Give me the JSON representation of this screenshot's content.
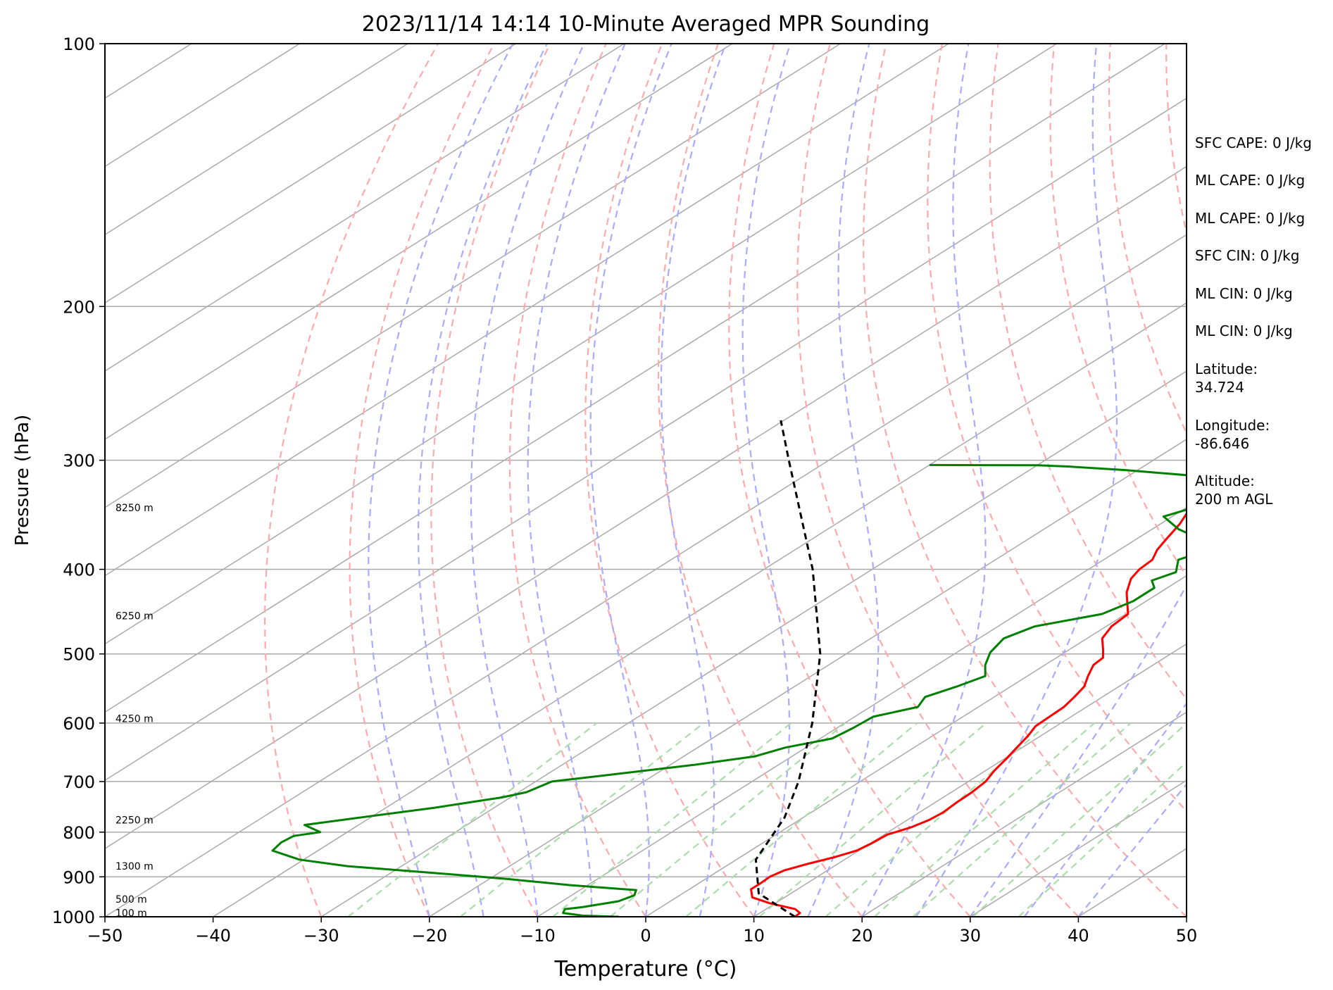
{
  "chart_data": {
    "type": "line",
    "title": "2023/11/14 14:14 10-Minute Averaged MPR Sounding",
    "xlabel": "Temperature (°C)",
    "ylabel": "Pressure (hPa)",
    "xlim": [
      -50,
      50
    ],
    "ylim": [
      1000,
      100
    ],
    "y_scale": "log",
    "grid": true,
    "x_ticks": [
      -50,
      -40,
      -30,
      -20,
      -10,
      0,
      10,
      20,
      30,
      40,
      50
    ],
    "x_tick_labels": [
      "−50",
      "−40",
      "−30",
      "−20",
      "−10",
      "0",
      "10",
      "20",
      "30",
      "40",
      "50"
    ],
    "y_ticks": [
      1000,
      900,
      800,
      700,
      600,
      500,
      400,
      300,
      200,
      100
    ],
    "y_tick_labels": [
      "1000",
      "900",
      "800",
      "700",
      "600",
      "500",
      "400",
      "300",
      "200",
      "100"
    ],
    "skew_factor": 1.28,
    "series": [
      {
        "role": "temperature",
        "color": "#ff0000",
        "points": [
          [
            1000,
            13.8
          ],
          [
            990,
            13.7
          ],
          [
            980,
            12.7
          ],
          [
            965,
            9.5
          ],
          [
            950,
            7.0
          ],
          [
            930,
            5.7
          ],
          [
            915,
            5.7
          ],
          [
            900,
            5.6
          ],
          [
            885,
            6.0
          ],
          [
            870,
            7.2
          ],
          [
            855,
            8.7
          ],
          [
            840,
            9.8
          ],
          [
            825,
            10.1
          ],
          [
            805,
            10.3
          ],
          [
            790,
            11.4
          ],
          [
            775,
            12.0
          ],
          [
            760,
            12.2
          ],
          [
            740,
            12.0
          ],
          [
            720,
            11.9
          ],
          [
            700,
            11.6
          ],
          [
            680,
            10.8
          ],
          [
            660,
            10.2
          ],
          [
            640,
            9.5
          ],
          [
            620,
            8.8
          ],
          [
            605,
            8.1
          ],
          [
            590,
            8.0
          ],
          [
            575,
            7.9
          ],
          [
            560,
            7.4
          ],
          [
            545,
            6.8
          ],
          [
            530,
            5.6
          ],
          [
            515,
            4.5
          ],
          [
            505,
            4.3
          ],
          [
            495,
            3.2
          ],
          [
            480,
            1.4
          ],
          [
            465,
            0.5
          ],
          [
            450,
            0.2
          ],
          [
            440,
            -1.1
          ],
          [
            425,
            -3.1
          ],
          [
            410,
            -4.7
          ],
          [
            400,
            -5.3
          ],
          [
            390,
            -5.5
          ],
          [
            380,
            -6.5
          ],
          [
            370,
            -7.2
          ],
          [
            355,
            -8.2
          ],
          [
            340,
            -9.6
          ],
          [
            325,
            -11.1
          ],
          [
            310,
            -12.3
          ],
          [
            295,
            -13.8
          ],
          [
            280,
            -15.2
          ],
          [
            270,
            -16.1
          ]
        ]
      },
      {
        "role": "dewpoint",
        "color": "#008000",
        "points": [
          [
            1000,
            -2.5
          ],
          [
            997,
            -6.0
          ],
          [
            990,
            -8.2
          ],
          [
            980,
            -8.6
          ],
          [
            975,
            -7.3
          ],
          [
            960,
            -4.8
          ],
          [
            945,
            -4.2
          ],
          [
            932,
            -4.8
          ],
          [
            920,
            -11.6
          ],
          [
            905,
            -18.4
          ],
          [
            890,
            -26.5
          ],
          [
            875,
            -35.0
          ],
          [
            860,
            -40.4
          ],
          [
            840,
            -44.2
          ],
          [
            822,
            -44.6
          ],
          [
            808,
            -44.4
          ],
          [
            800,
            -42.5
          ],
          [
            785,
            -45.0
          ],
          [
            770,
            -41.0
          ],
          [
            750,
            -35.5
          ],
          [
            730,
            -30.8
          ],
          [
            720,
            -29.3
          ],
          [
            700,
            -28.5
          ],
          [
            690,
            -25.0
          ],
          [
            670,
            -17.8
          ],
          [
            655,
            -13.4
          ],
          [
            640,
            -11.9
          ],
          [
            625,
            -8.9
          ],
          [
            608,
            -8.5
          ],
          [
            590,
            -8.3
          ],
          [
            575,
            -5.6
          ],
          [
            560,
            -6.4
          ],
          [
            545,
            -5.0
          ],
          [
            530,
            -3.9
          ],
          [
            515,
            -5.5
          ],
          [
            498,
            -6.9
          ],
          [
            480,
            -7.7
          ],
          [
            465,
            -6.6
          ],
          [
            450,
            -2.2
          ],
          [
            435,
            -1.2
          ],
          [
            420,
            -1.2
          ],
          [
            412,
            -2.5
          ],
          [
            403,
            -1.5
          ],
          [
            390,
            -3.1
          ],
          [
            377,
            -1.3
          ],
          [
            360,
            -7.5
          ],
          [
            348,
            -10.8
          ],
          [
            336,
            -8.6
          ],
          [
            322,
            -11.5
          ],
          [
            315,
            -10.2
          ],
          [
            308,
            -21.0
          ],
          [
            305,
            -27.0
          ],
          [
            304,
            -30.0
          ],
          [
            303.8,
            -40.0
          ]
        ]
      },
      {
        "role": "parcel",
        "color": "#000000",
        "points": [
          [
            1000,
            13.8
          ],
          [
            940,
            7.0
          ],
          [
            860,
            1.8
          ],
          [
            770,
            -1.7
          ],
          [
            700,
            -5.7
          ],
          [
            600,
            -13.0
          ],
          [
            500,
            -22.4
          ],
          [
            400,
            -35.5
          ],
          [
            300,
            -53.7
          ],
          [
            270,
            -60.3
          ]
        ]
      }
    ],
    "height_labels": [
      {
        "label": "100 m",
        "pressure": 990
      },
      {
        "label": "500 m",
        "pressure": 955
      },
      {
        "label": "1300 m",
        "pressure": 875
      },
      {
        "label": "2250 m",
        "pressure": 775
      },
      {
        "label": "4250 m",
        "pressure": 593
      },
      {
        "label": "6250 m",
        "pressure": 452
      },
      {
        "label": "8250 m",
        "pressure": 340
      }
    ],
    "background_lines": {
      "isotherms_color": "#aaaaaa",
      "dry_adiabats_color": "#ffaaaa",
      "moist_adiabats_color": "#aaaaff",
      "mixing_ratio_color": "#aaddaa"
    }
  },
  "info_panel": {
    "items": [
      "SFC CAPE: 0 J/kg",
      "ML CAPE: 0 J/kg",
      "ML CAPE: 0 J/kg",
      "SFC CIN: 0 J/kg",
      "ML CIN: 0 J/kg",
      "ML CIN: 0 J/kg",
      "Latitude:",
      "34.724",
      "Longitude:",
      "-86.646",
      "Altitude:",
      "200 m AGL"
    ]
  }
}
